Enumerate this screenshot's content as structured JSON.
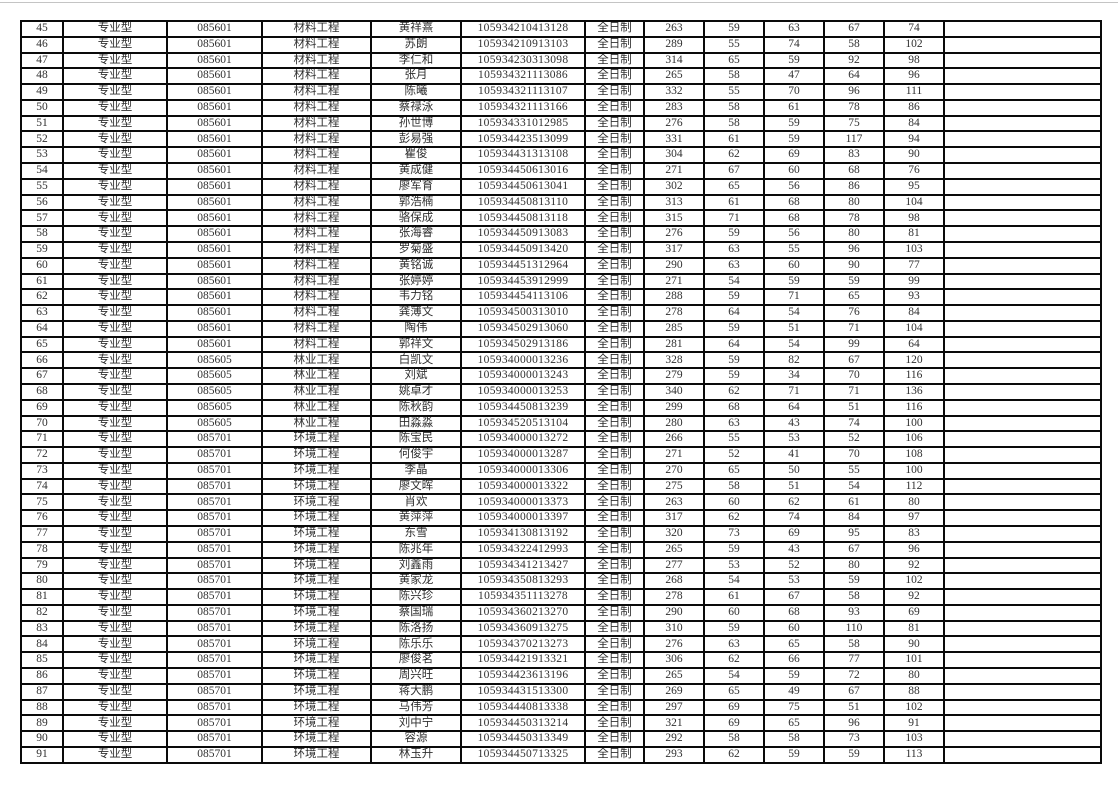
{
  "document": {
    "kind": "admission-score-table-page",
    "text_color": "#303030",
    "grid_color": "#0a0a0a",
    "top_rule_color": "#c4c4c4"
  },
  "table": {
    "columns": [
      {
        "name": "row-number",
        "width": 42
      },
      {
        "name": "degree-type",
        "width": 104
      },
      {
        "name": "major-code",
        "width": 95
      },
      {
        "name": "major-name",
        "width": 109
      },
      {
        "name": "student-name",
        "width": 90
      },
      {
        "name": "exam-id",
        "width": 124
      },
      {
        "name": "study-mode",
        "width": 59
      },
      {
        "name": "total-score",
        "width": 60
      },
      {
        "name": "score-2",
        "width": 60
      },
      {
        "name": "score-3",
        "width": 60
      },
      {
        "name": "score-4",
        "width": 60
      },
      {
        "name": "score-5",
        "width": 60
      },
      {
        "name": "blank",
        "width": 157
      }
    ],
    "rows": [
      [
        "45",
        "专业型",
        "085601",
        "材料工程",
        "黄祥熹",
        "105934210413128",
        "全日制",
        "263",
        "59",
        "63",
        "67",
        "74",
        ""
      ],
      [
        "46",
        "专业型",
        "085601",
        "材料工程",
        "苏朗",
        "105934210913103",
        "全日制",
        "289",
        "55",
        "74",
        "58",
        "102",
        ""
      ],
      [
        "47",
        "专业型",
        "085601",
        "材料工程",
        "李仁和",
        "105934230313098",
        "全日制",
        "314",
        "65",
        "59",
        "92",
        "98",
        ""
      ],
      [
        "48",
        "专业型",
        "085601",
        "材料工程",
        "张月",
        "105934321113086",
        "全日制",
        "265",
        "58",
        "47",
        "64",
        "96",
        ""
      ],
      [
        "49",
        "专业型",
        "085601",
        "材料工程",
        "陈曦",
        "105934321113107",
        "全日制",
        "332",
        "55",
        "70",
        "96",
        "111",
        ""
      ],
      [
        "50",
        "专业型",
        "085601",
        "材料工程",
        "蔡禄泳",
        "105934321113166",
        "全日制",
        "283",
        "58",
        "61",
        "78",
        "86",
        ""
      ],
      [
        "51",
        "专业型",
        "085601",
        "材料工程",
        "孙世博",
        "105934331012985",
        "全日制",
        "276",
        "58",
        "59",
        "75",
        "84",
        ""
      ],
      [
        "52",
        "专业型",
        "085601",
        "材料工程",
        "彭易强",
        "105934423513099",
        "全日制",
        "331",
        "61",
        "59",
        "117",
        "94",
        ""
      ],
      [
        "53",
        "专业型",
        "085601",
        "材料工程",
        "瞿俊",
        "105934431313108",
        "全日制",
        "304",
        "62",
        "69",
        "83",
        "90",
        ""
      ],
      [
        "54",
        "专业型",
        "085601",
        "材料工程",
        "黄成健",
        "105934450613016",
        "全日制",
        "271",
        "67",
        "60",
        "68",
        "76",
        ""
      ],
      [
        "55",
        "专业型",
        "085601",
        "材料工程",
        "廖军育",
        "105934450613041",
        "全日制",
        "302",
        "65",
        "56",
        "86",
        "95",
        ""
      ],
      [
        "56",
        "专业型",
        "085601",
        "材料工程",
        "郭浩楠",
        "105934450813110",
        "全日制",
        "313",
        "61",
        "68",
        "80",
        "104",
        ""
      ],
      [
        "57",
        "专业型",
        "085601",
        "材料工程",
        "骆保成",
        "105934450813118",
        "全日制",
        "315",
        "71",
        "68",
        "78",
        "98",
        ""
      ],
      [
        "58",
        "专业型",
        "085601",
        "材料工程",
        "张海睿",
        "105934450913083",
        "全日制",
        "276",
        "59",
        "56",
        "80",
        "81",
        ""
      ],
      [
        "59",
        "专业型",
        "085601",
        "材料工程",
        "罗菊盛",
        "105934450913420",
        "全日制",
        "317",
        "63",
        "55",
        "96",
        "103",
        ""
      ],
      [
        "60",
        "专业型",
        "085601",
        "材料工程",
        "黄铭诚",
        "105934451312964",
        "全日制",
        "290",
        "63",
        "60",
        "90",
        "77",
        ""
      ],
      [
        "61",
        "专业型",
        "085601",
        "材料工程",
        "张婷婷",
        "105934453912999",
        "全日制",
        "271",
        "54",
        "59",
        "59",
        "99",
        ""
      ],
      [
        "62",
        "专业型",
        "085601",
        "材料工程",
        "韦力铭",
        "105934454113106",
        "全日制",
        "288",
        "59",
        "71",
        "65",
        "93",
        ""
      ],
      [
        "63",
        "专业型",
        "085601",
        "材料工程",
        "龚薄文",
        "105934500313010",
        "全日制",
        "278",
        "64",
        "54",
        "76",
        "84",
        ""
      ],
      [
        "64",
        "专业型",
        "085601",
        "材料工程",
        "陶伟",
        "105934502913060",
        "全日制",
        "285",
        "59",
        "51",
        "71",
        "104",
        ""
      ],
      [
        "65",
        "专业型",
        "085601",
        "材料工程",
        "郭祥文",
        "105934502913186",
        "全日制",
        "281",
        "64",
        "54",
        "99",
        "64",
        ""
      ],
      [
        "66",
        "专业型",
        "085605",
        "林业工程",
        "白凯文",
        "105934000013236",
        "全日制",
        "328",
        "59",
        "82",
        "67",
        "120",
        ""
      ],
      [
        "67",
        "专业型",
        "085605",
        "林业工程",
        "刘斌",
        "105934000013243",
        "全日制",
        "279",
        "59",
        "34",
        "70",
        "116",
        ""
      ],
      [
        "68",
        "专业型",
        "085605",
        "林业工程",
        "姚卓才",
        "105934000013253",
        "全日制",
        "340",
        "62",
        "71",
        "71",
        "136",
        ""
      ],
      [
        "69",
        "专业型",
        "085605",
        "林业工程",
        "陈秋韵",
        "105934450813239",
        "全日制",
        "299",
        "68",
        "64",
        "51",
        "116",
        ""
      ],
      [
        "70",
        "专业型",
        "085605",
        "林业工程",
        "田淼淼",
        "105934520513104",
        "全日制",
        "280",
        "63",
        "43",
        "74",
        "100",
        ""
      ],
      [
        "71",
        "专业型",
        "085701",
        "环境工程",
        "陈宝民",
        "105934000013272",
        "全日制",
        "266",
        "55",
        "53",
        "52",
        "106",
        ""
      ],
      [
        "72",
        "专业型",
        "085701",
        "环境工程",
        "何俊宇",
        "105934000013287",
        "全日制",
        "271",
        "52",
        "41",
        "70",
        "108",
        ""
      ],
      [
        "73",
        "专业型",
        "085701",
        "环境工程",
        "李晶",
        "105934000013306",
        "全日制",
        "270",
        "65",
        "50",
        "55",
        "100",
        ""
      ],
      [
        "74",
        "专业型",
        "085701",
        "环境工程",
        "廖文晖",
        "105934000013322",
        "全日制",
        "275",
        "58",
        "51",
        "54",
        "112",
        ""
      ],
      [
        "75",
        "专业型",
        "085701",
        "环境工程",
        "肖欢",
        "105934000013373",
        "全日制",
        "263",
        "60",
        "62",
        "61",
        "80",
        ""
      ],
      [
        "76",
        "专业型",
        "085701",
        "环境工程",
        "黄萍萍",
        "105934000013397",
        "全日制",
        "317",
        "62",
        "74",
        "84",
        "97",
        ""
      ],
      [
        "77",
        "专业型",
        "085701",
        "环境工程",
        "东雪",
        "105934130813192",
        "全日制",
        "320",
        "73",
        "69",
        "95",
        "83",
        ""
      ],
      [
        "78",
        "专业型",
        "085701",
        "环境工程",
        "陈兆年",
        "105934322412993",
        "全日制",
        "265",
        "59",
        "43",
        "67",
        "96",
        ""
      ],
      [
        "79",
        "专业型",
        "085701",
        "环境工程",
        "刘鑫雨",
        "105934341213427",
        "全日制",
        "277",
        "53",
        "52",
        "80",
        "92",
        ""
      ],
      [
        "80",
        "专业型",
        "085701",
        "环境工程",
        "黄家龙",
        "105934350813293",
        "全日制",
        "268",
        "54",
        "53",
        "59",
        "102",
        ""
      ],
      [
        "81",
        "专业型",
        "085701",
        "环境工程",
        "陈兴珍",
        "105934351113278",
        "全日制",
        "278",
        "61",
        "67",
        "58",
        "92",
        ""
      ],
      [
        "82",
        "专业型",
        "085701",
        "环境工程",
        "蔡国瑞",
        "105934360213270",
        "全日制",
        "290",
        "60",
        "68",
        "93",
        "69",
        ""
      ],
      [
        "83",
        "专业型",
        "085701",
        "环境工程",
        "陈洛扬",
        "105934360913275",
        "全日制",
        "310",
        "59",
        "60",
        "110",
        "81",
        ""
      ],
      [
        "84",
        "专业型",
        "085701",
        "环境工程",
        "陈乐乐",
        "105934370213273",
        "全日制",
        "276",
        "63",
        "65",
        "58",
        "90",
        ""
      ],
      [
        "85",
        "专业型",
        "085701",
        "环境工程",
        "廖俊茗",
        "105934421913321",
        "全日制",
        "306",
        "62",
        "66",
        "77",
        "101",
        ""
      ],
      [
        "86",
        "专业型",
        "085701",
        "环境工程",
        "周兴旺",
        "105934423613196",
        "全日制",
        "265",
        "54",
        "59",
        "72",
        "80",
        ""
      ],
      [
        "87",
        "专业型",
        "085701",
        "环境工程",
        "蒋大鹏",
        "105934431513300",
        "全日制",
        "269",
        "65",
        "49",
        "67",
        "88",
        ""
      ],
      [
        "88",
        "专业型",
        "085701",
        "环境工程",
        "马伟芳",
        "105934440813338",
        "全日制",
        "297",
        "69",
        "75",
        "51",
        "102",
        ""
      ],
      [
        "89",
        "专业型",
        "085701",
        "环境工程",
        "刘中宁",
        "105934450313214",
        "全日制",
        "321",
        "69",
        "65",
        "96",
        "91",
        ""
      ],
      [
        "90",
        "专业型",
        "085701",
        "环境工程",
        "容源",
        "105934450313349",
        "全日制",
        "292",
        "58",
        "58",
        "73",
        "103",
        ""
      ],
      [
        "91",
        "专业型",
        "085701",
        "环境工程",
        "林玉升",
        "105934450713325",
        "全日制",
        "293",
        "62",
        "59",
        "59",
        "113",
        ""
      ]
    ]
  }
}
